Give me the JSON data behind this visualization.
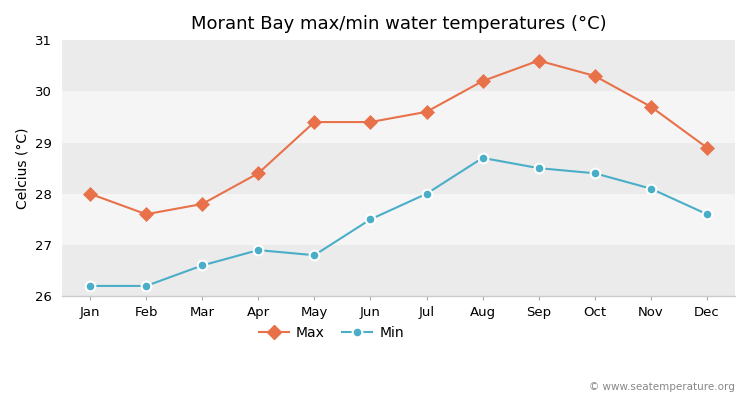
{
  "title": "Morant Bay max/min water temperatures (°C)",
  "ylabel": "Celcius (°C)",
  "months": [
    "Jan",
    "Feb",
    "Mar",
    "Apr",
    "May",
    "Jun",
    "Jul",
    "Aug",
    "Sep",
    "Oct",
    "Nov",
    "Dec"
  ],
  "max_values": [
    28.0,
    27.6,
    27.8,
    28.4,
    29.4,
    29.4,
    29.6,
    30.2,
    30.6,
    30.3,
    29.7,
    28.9
  ],
  "min_values": [
    26.2,
    26.2,
    26.6,
    26.9,
    26.8,
    27.5,
    28.0,
    28.7,
    28.5,
    28.4,
    28.1,
    27.6
  ],
  "max_color": "#e8714a",
  "min_color": "#4baec8",
  "ylim": [
    26.0,
    31.0
  ],
  "yticks": [
    26,
    27,
    28,
    29,
    30,
    31
  ],
  "fig_bg_color": "#ffffff",
  "band_colors": [
    "#ebebeb",
    "#f5f5f5"
  ],
  "watermark": "© www.seatemperature.org",
  "legend_max": "Max",
  "legend_min": "Min",
  "title_fontsize": 13,
  "label_fontsize": 10,
  "tick_fontsize": 9.5
}
